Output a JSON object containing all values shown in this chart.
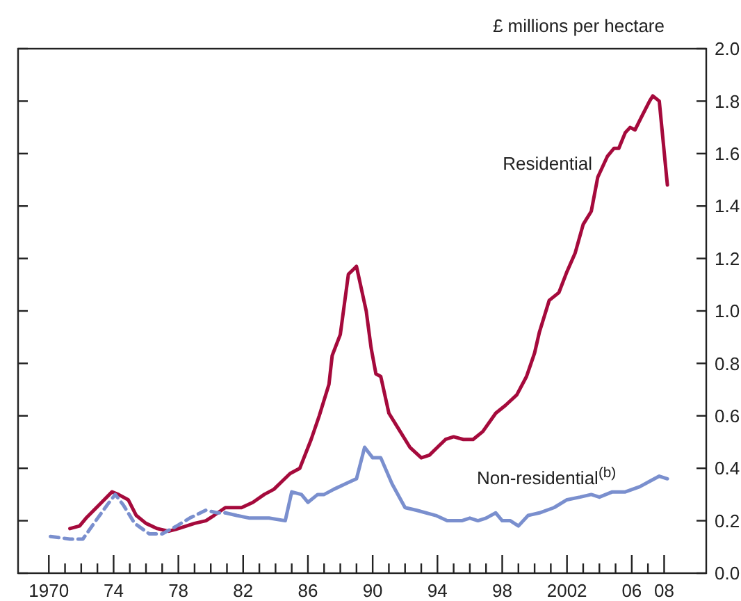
{
  "chart_data": {
    "type": "line",
    "ylabel": "£ millions per hectare",
    "xlim": [
      1968.1,
      2010.6
    ],
    "xticks": [
      {
        "value": 1970,
        "label": "1970"
      },
      {
        "value": 1971,
        "label": null
      },
      {
        "value": 1972,
        "label": null
      },
      {
        "value": 1973,
        "label": null
      },
      {
        "value": 1974,
        "label": "74"
      },
      {
        "value": 1975,
        "label": null
      },
      {
        "value": 1976,
        "label": null
      },
      {
        "value": 1977,
        "label": null
      },
      {
        "value": 1978,
        "label": "78"
      },
      {
        "value": 1979,
        "label": null
      },
      {
        "value": 1980,
        "label": null
      },
      {
        "value": 1981,
        "label": null
      },
      {
        "value": 1982,
        "label": "82"
      },
      {
        "value": 1983,
        "label": null
      },
      {
        "value": 1984,
        "label": null
      },
      {
        "value": 1985,
        "label": null
      },
      {
        "value": 1986,
        "label": "86"
      },
      {
        "value": 1987,
        "label": null
      },
      {
        "value": 1988,
        "label": null
      },
      {
        "value": 1989,
        "label": null
      },
      {
        "value": 1990,
        "label": "90"
      },
      {
        "value": 1991,
        "label": null
      },
      {
        "value": 1992,
        "label": null
      },
      {
        "value": 1993,
        "label": null
      },
      {
        "value": 1994,
        "label": "94"
      },
      {
        "value": 1995,
        "label": null
      },
      {
        "value": 1996,
        "label": null
      },
      {
        "value": 1997,
        "label": null
      },
      {
        "value": 1998,
        "label": "98"
      },
      {
        "value": 1999,
        "label": null
      },
      {
        "value": 2000,
        "label": null
      },
      {
        "value": 2001,
        "label": null
      },
      {
        "value": 2002,
        "label": "2002"
      },
      {
        "value": 2003,
        "label": null
      },
      {
        "value": 2004,
        "label": null
      },
      {
        "value": 2005,
        "label": null
      },
      {
        "value": 2006,
        "label": "06"
      },
      {
        "value": 2007,
        "label": null
      },
      {
        "value": 2008,
        "label": "08"
      }
    ],
    "ylim": [
      0,
      2
    ],
    "yticks": [
      {
        "value": 0,
        "label": "0.0"
      },
      {
        "value": 0.2,
        "label": "0.2"
      },
      {
        "value": 0.4,
        "label": "0.4"
      },
      {
        "value": 0.6,
        "label": "0.6"
      },
      {
        "value": 0.8,
        "label": "0.8"
      },
      {
        "value": 1,
        "label": "1.0"
      },
      {
        "value": 1.2,
        "label": "1.2"
      },
      {
        "value": 1.4,
        "label": "1.4"
      },
      {
        "value": 1.6,
        "label": "1.6"
      },
      {
        "value": 1.8,
        "label": "1.8"
      },
      {
        "value": 2,
        "label": "2.0"
      }
    ],
    "marker": "none",
    "series": [
      {
        "name": "Residential",
        "color": "#a50a3c",
        "line_style": "solid",
        "x": [
          1971.3,
          1971.9,
          1972.3,
          1973.1,
          1973.9,
          1974.3,
          1974.9,
          1975.4,
          1976.0,
          1976.7,
          1977.4,
          1978.0,
          1979.0,
          1979.7,
          1980.2,
          1980.9,
          1981.3,
          1981.9,
          1982.6,
          1983.3,
          1983.9,
          1984.4,
          1984.9,
          1985.5,
          1986.2,
          1986.7,
          1987.3,
          1987.5,
          1988.0,
          1988.5,
          1989.0,
          1989.6,
          1989.9,
          1990.2,
          1990.5,
          1991.0,
          1991.6,
          1992.3,
          1993.0,
          1993.5,
          1994.0,
          1994.5,
          1995.0,
          1995.6,
          1996.2,
          1996.8,
          1997.6,
          1998.2,
          1998.9,
          1999.5,
          2000.0,
          2000.3,
          2000.9,
          2001.5,
          2002.0,
          2002.5,
          2003.0,
          2003.5,
          2003.9,
          2004.5,
          2004.9,
          2005.2,
          2005.6,
          2005.9,
          2006.2,
          2006.6,
          2007.1,
          2007.3,
          2007.7,
          2008.2
        ],
        "values": [
          0.17,
          0.18,
          0.21,
          0.26,
          0.31,
          0.3,
          0.28,
          0.22,
          0.19,
          0.17,
          0.16,
          0.17,
          0.19,
          0.2,
          0.22,
          0.25,
          0.25,
          0.25,
          0.27,
          0.3,
          0.32,
          0.35,
          0.38,
          0.4,
          0.51,
          0.6,
          0.72,
          0.83,
          0.91,
          1.14,
          1.17,
          1.0,
          0.86,
          0.76,
          0.75,
          0.61,
          0.55,
          0.48,
          0.44,
          0.45,
          0.48,
          0.51,
          0.52,
          0.51,
          0.51,
          0.54,
          0.61,
          0.64,
          0.68,
          0.75,
          0.84,
          0.92,
          1.04,
          1.07,
          1.15,
          1.22,
          1.33,
          1.38,
          1.51,
          1.59,
          1.62,
          1.62,
          1.68,
          1.7,
          1.69,
          1.74,
          1.8,
          1.82,
          1.8,
          1.48
        ]
      },
      {
        "color": "#7a8fce",
        "line_style": "dashed",
        "x": [
          1970.1,
          1971.3,
          1972.1,
          1972.9,
          1973.6,
          1974.1,
          1974.6,
          1975.3,
          1976.2,
          1977.0,
          1977.9,
          1978.7,
          1979.7,
          1980.4,
          1980.9
        ],
        "values": [
          0.14,
          0.13,
          0.13,
          0.2,
          0.26,
          0.3,
          0.26,
          0.19,
          0.15,
          0.15,
          0.18,
          0.21,
          0.24,
          0.23,
          0.23
        ]
      },
      {
        "name": "Non-residential$^{(b)}$",
        "color": "#7a8fce",
        "line_style": "solid",
        "x": [
          1980.9,
          1981.6,
          1982.4,
          1983.6,
          1984.6,
          1985.0,
          1985.6,
          1986.0,
          1986.6,
          1987.0,
          1987.6,
          1988.3,
          1989.0,
          1989.5,
          1990.0,
          1990.5,
          1991.2,
          1992.0,
          1992.7,
          1993.9,
          1994.6,
          1995.5,
          1996.0,
          1996.5,
          1997.0,
          1997.6,
          1998.0,
          1998.5,
          1999.0,
          1999.6,
          2000.3,
          2001.2,
          2002.0,
          2002.8,
          2003.5,
          2004.0,
          2004.8,
          2005.6,
          2006.5,
          2007.1,
          2007.7,
          2008.2
        ],
        "values": [
          0.23,
          0.22,
          0.21,
          0.21,
          0.2,
          0.31,
          0.3,
          0.27,
          0.3,
          0.3,
          0.32,
          0.34,
          0.36,
          0.48,
          0.44,
          0.44,
          0.34,
          0.25,
          0.24,
          0.22,
          0.2,
          0.2,
          0.21,
          0.2,
          0.21,
          0.23,
          0.2,
          0.2,
          0.18,
          0.22,
          0.23,
          0.25,
          0.28,
          0.29,
          0.3,
          0.29,
          0.31,
          0.31,
          0.33,
          0.35,
          0.37,
          0.36
        ]
      }
    ]
  }
}
